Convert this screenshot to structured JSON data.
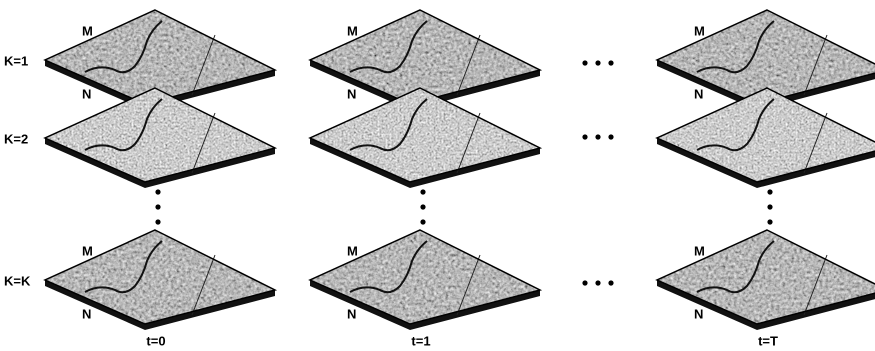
{
  "rows": [
    {
      "label": "K=1"
    },
    {
      "label": "K=2"
    },
    {
      "label": "K=K"
    }
  ],
  "columns": [
    {
      "label": "t=0"
    },
    {
      "label": "t=1"
    },
    {
      "label": "t=T"
    }
  ],
  "dimension_labels": {
    "top": "M",
    "bottom": "N"
  }
}
